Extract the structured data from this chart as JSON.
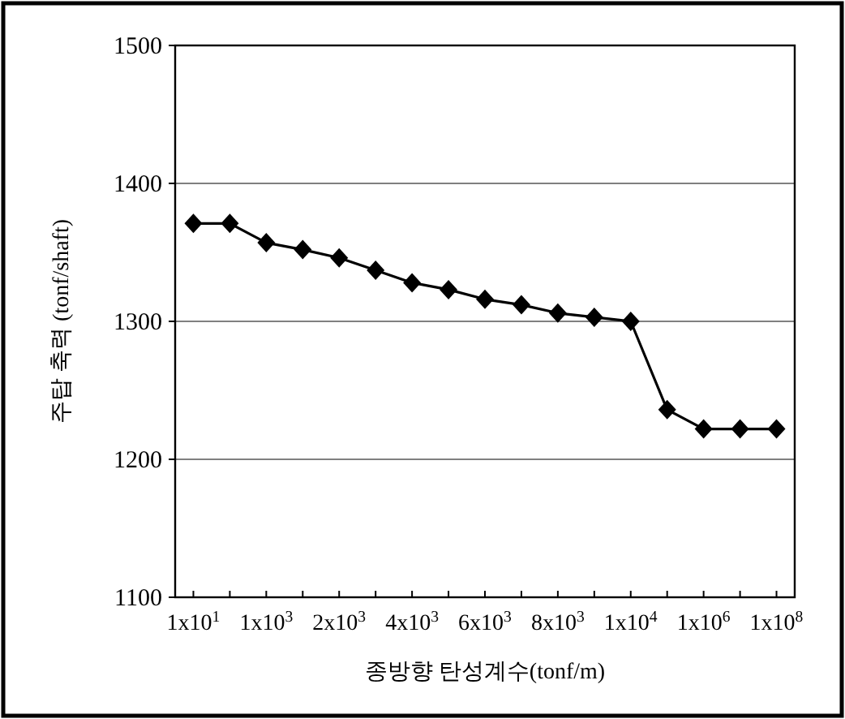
{
  "chart_data": {
    "type": "line",
    "xlabel": "종방향 탄성계수(tonf/m)",
    "ylabel": "주탑 축력 (tonf/shaft)",
    "categories": [
      "1x10$^{1}$",
      null,
      "1x10$^{3}$",
      null,
      "2x10$^{3}$",
      null,
      "4x10$^{3}$",
      null,
      "6x10$^{3}$",
      null,
      "8x10$^{3}$",
      null,
      "1x10$^{4}$",
      null,
      "1x10$^{6}$",
      null,
      "1x10$^{8}$"
    ],
    "series": [
      {
        "color": "#000000",
        "values": [
          1371,
          1371,
          1357,
          1352,
          1346,
          1337,
          1328,
          1323,
          1316,
          1312,
          1306,
          1303,
          1300,
          1236,
          1222,
          1222,
          1222
        ]
      }
    ],
    "ylim": [
      1100,
      1500
    ],
    "yticks": [
      1100,
      1200,
      1300,
      1400,
      1500
    ],
    "grid": "y",
    "marker": "diamond",
    "line_style": "solid"
  }
}
